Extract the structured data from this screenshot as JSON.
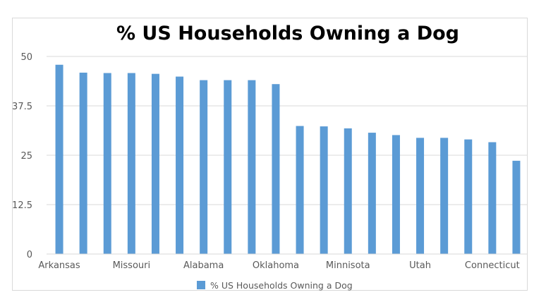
{
  "chart_data": {
    "type": "bar",
    "title": "% US Households Owning a Dog",
    "xlabel": "",
    "ylabel": "",
    "ylim": [
      0,
      50
    ],
    "yticks": [
      0,
      12.5,
      25,
      37.5,
      50
    ],
    "ytick_labels": [
      "0",
      "12.5",
      "25",
      "37.5",
      "50"
    ],
    "grid": true,
    "legend_position": "bottom",
    "bar_color": "#5b9bd5",
    "categories": [
      "Arkansas",
      "",
      "",
      "Missouri",
      "",
      "",
      "Alabama",
      "",
      "",
      "Oklahoma",
      "",
      "",
      "Minnisota",
      "",
      "",
      "Utah",
      "",
      "",
      "Connecticut",
      ""
    ],
    "series": [
      {
        "name": "% US Households Owning a Dog",
        "values": [
          47.9,
          45.9,
          45.8,
          45.8,
          45.6,
          44.9,
          44.0,
          44.0,
          44.0,
          43.0,
          32.4,
          32.3,
          31.8,
          30.7,
          30.1,
          29.4,
          29.4,
          29.0,
          28.3,
          23.6
        ]
      }
    ]
  }
}
